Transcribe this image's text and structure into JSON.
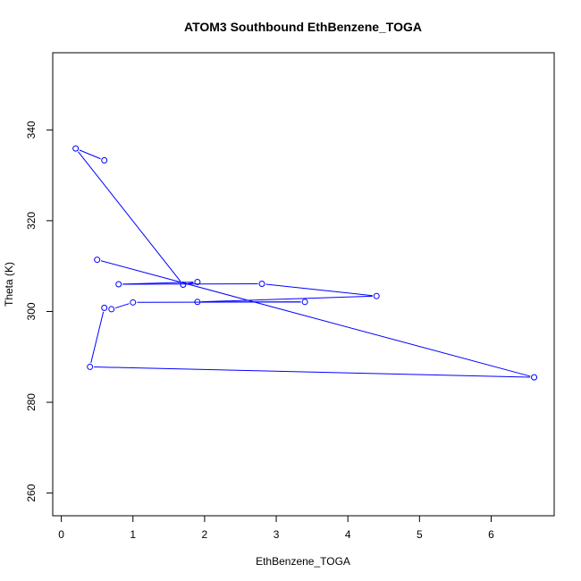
{
  "chart_data": {
    "type": "line",
    "title": "ATOM3 Southbound EthBenzene_TOGA",
    "xlabel": "EthBenzene_TOGA",
    "ylabel": "Theta (K)",
    "xlim": [
      -0.12,
      6.88
    ],
    "ylim": [
      255,
      357
    ],
    "xticks": [
      0,
      1,
      2,
      3,
      4,
      5,
      6
    ],
    "yticks": [
      260,
      280,
      300,
      320,
      340
    ],
    "grid": false,
    "series": [
      {
        "color": "#0000ff",
        "marker": "open-circle",
        "points": [
          {
            "x": 0.6,
            "y": 333.3
          },
          {
            "x": 0.2,
            "y": 335.9
          },
          {
            "x": 1.7,
            "y": 305.9
          },
          {
            "x": 1.9,
            "y": 306.5
          },
          {
            "x": 0.8,
            "y": 306.0
          },
          {
            "x": 2.8,
            "y": 306.1
          },
          {
            "x": 4.4,
            "y": 303.4
          },
          {
            "x": 1.9,
            "y": 302.1
          },
          {
            "x": 3.4,
            "y": 302.1
          },
          {
            "x": 1.0,
            "y": 302.0
          },
          {
            "x": 0.7,
            "y": 300.5
          },
          {
            "x": 0.6,
            "y": 300.8
          },
          {
            "x": 0.4,
            "y": 287.8
          },
          {
            "x": 6.6,
            "y": 285.5
          },
          {
            "x": 0.5,
            "y": 311.4
          }
        ]
      }
    ]
  }
}
